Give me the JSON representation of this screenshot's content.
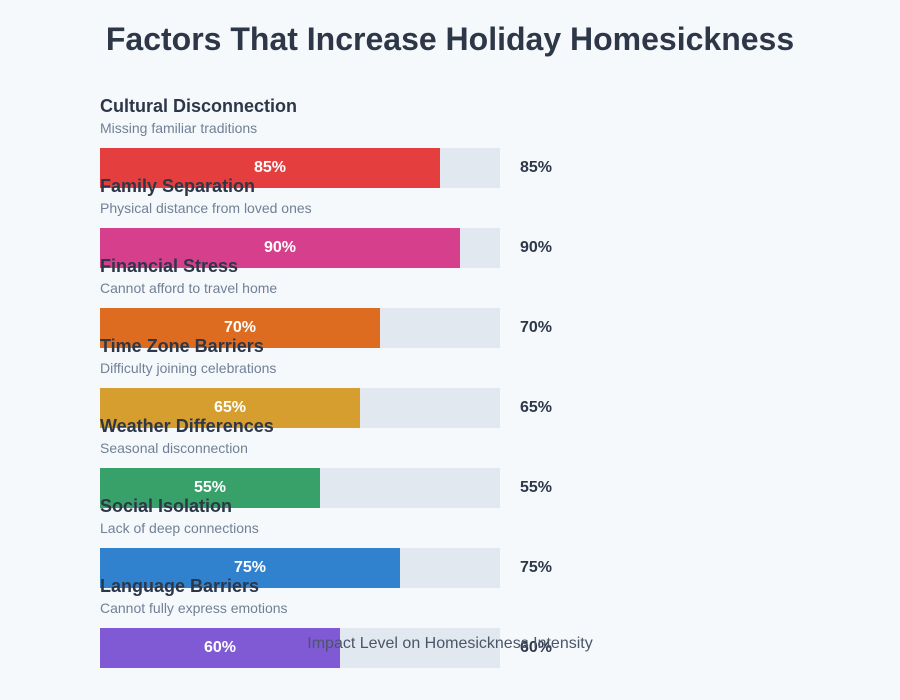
{
  "title": "Factors That Increase Holiday Homesickness",
  "axis_label": "Impact Level on Homesickness Intensity",
  "factors": [
    {
      "label": "Cultural Disconnection",
      "sub": "Missing familiar traditions",
      "value": 85,
      "text": "85%",
      "color": "#e53e3e"
    },
    {
      "label": "Family Separation",
      "sub": "Physical distance from loved ones",
      "value": 90,
      "text": "90%",
      "color": "#d53f8c"
    },
    {
      "label": "Financial Stress",
      "sub": "Cannot afford to travel home",
      "value": 70,
      "text": "70%",
      "color": "#dd6b20"
    },
    {
      "label": "Time Zone Barriers",
      "sub": "Difficulty joining celebrations",
      "value": 65,
      "text": "65%",
      "color": "#d69e2e"
    },
    {
      "label": "Weather Differences",
      "sub": "Seasonal disconnection",
      "value": 55,
      "text": "55%",
      "color": "#38a169"
    },
    {
      "label": "Social Isolation",
      "sub": "Lack of deep connections",
      "value": 75,
      "text": "75%",
      "color": "#3182ce"
    },
    {
      "label": "Language Barriers",
      "sub": "Cannot fully express emotions",
      "value": 60,
      "text": "60%",
      "color": "#805ad5"
    }
  ],
  "chart_data": {
    "type": "bar",
    "orientation": "horizontal",
    "title": "Factors That Increase Holiday Homesickness",
    "xlabel": "Impact Level on Homesickness Intensity",
    "ylabel": "",
    "categories": [
      "Cultural Disconnection",
      "Family Separation",
      "Financial Stress",
      "Time Zone Barriers",
      "Weather Differences",
      "Social Isolation",
      "Language Barriers"
    ],
    "subtitles": [
      "Missing familiar traditions",
      "Physical distance from loved ones",
      "Cannot afford to travel home",
      "Difficulty joining celebrations",
      "Seasonal disconnection",
      "Lack of deep connections",
      "Cannot fully express emotions"
    ],
    "values": [
      85,
      90,
      70,
      65,
      55,
      75,
      60
    ],
    "colors": [
      "#e53e3e",
      "#d53f8c",
      "#dd6b20",
      "#d69e2e",
      "#38a169",
      "#3182ce",
      "#805ad5"
    ],
    "xlim": [
      0,
      100
    ],
    "unit": "%",
    "grid": false,
    "legend": "none"
  }
}
